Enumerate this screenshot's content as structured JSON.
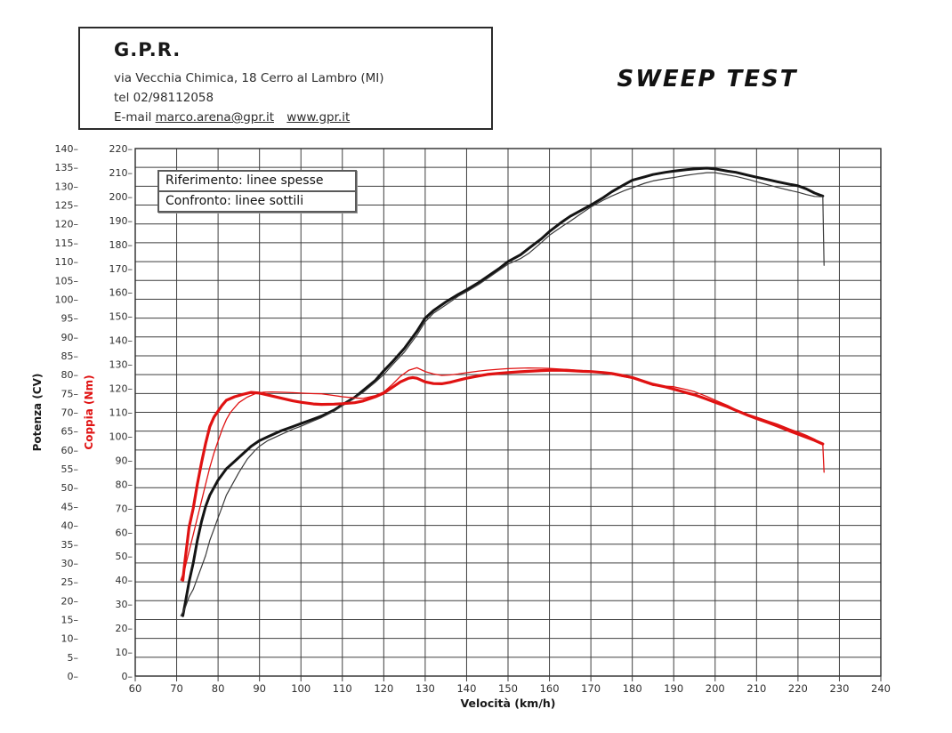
{
  "header": {
    "company": "G.P.R.",
    "address": "via Vecchia Chimica, 18 Cerro al Lambro (MI)",
    "phone": "tel 02/98112058",
    "email_label": "E-mail",
    "email": "marco.arena@gpr.it",
    "website": "www.gpr.it"
  },
  "title": "SWEEP TEST",
  "legend": {
    "reference": "Riferimento: linee spesse",
    "comparison": "Confronto: linee sottili"
  },
  "chart_data": {
    "type": "line",
    "grid": true,
    "x_axis": {
      "label": "Velocità (km/h)",
      "min": 60,
      "max": 240,
      "tick_step": 10
    },
    "y_axis_power": {
      "label": "Potenza (CV)",
      "min": 0,
      "max": 140,
      "tick_step": 5,
      "color": "#1a1a1a"
    },
    "y_axis_torque": {
      "label": "Coppia (Nm)",
      "min": 0,
      "max": 220,
      "tick_step": 10,
      "color": "#e01212"
    },
    "series": [
      {
        "name": "Riferimento Potenza (CV)",
        "axis": "power",
        "color": "#141414",
        "width": 3,
        "points": [
          [
            71.5,
            16
          ],
          [
            72,
            19
          ],
          [
            73,
            25
          ],
          [
            74,
            30
          ],
          [
            75,
            36
          ],
          [
            76,
            41
          ],
          [
            77,
            45
          ],
          [
            78,
            48
          ],
          [
            80,
            52
          ],
          [
            82,
            55
          ],
          [
            84,
            57
          ],
          [
            86,
            59
          ],
          [
            88,
            61
          ],
          [
            90,
            62.5
          ],
          [
            92,
            63.5
          ],
          [
            95,
            65
          ],
          [
            98,
            66.2
          ],
          [
            100,
            67
          ],
          [
            103,
            68.2
          ],
          [
            105,
            69
          ],
          [
            108,
            70.6
          ],
          [
            110,
            72
          ],
          [
            113,
            74
          ],
          [
            115,
            75.8
          ],
          [
            118,
            78.5
          ],
          [
            120,
            81
          ],
          [
            122,
            83.3
          ],
          [
            125,
            87
          ],
          [
            128,
            91.5
          ],
          [
            130,
            95
          ],
          [
            132,
            97
          ],
          [
            135,
            99.3
          ],
          [
            138,
            101.3
          ],
          [
            140,
            102.5
          ],
          [
            143,
            104.5
          ],
          [
            145,
            106
          ],
          [
            148,
            108.3
          ],
          [
            150,
            110
          ],
          [
            153,
            111.8
          ],
          [
            155,
            113.5
          ],
          [
            158,
            116
          ],
          [
            160,
            118
          ],
          [
            163,
            120.5
          ],
          [
            165,
            122
          ],
          [
            168,
            123.8
          ],
          [
            170,
            125
          ],
          [
            173,
            127
          ],
          [
            175,
            128.5
          ],
          [
            178,
            130.4
          ],
          [
            180,
            131.6
          ],
          [
            183,
            132.5
          ],
          [
            185,
            133.1
          ],
          [
            188,
            133.7
          ],
          [
            190,
            134
          ],
          [
            193,
            134.4
          ],
          [
            195,
            134.6
          ],
          [
            198,
            134.8
          ],
          [
            200,
            134.6
          ],
          [
            203,
            134
          ],
          [
            205,
            133.7
          ],
          [
            208,
            132.9
          ],
          [
            210,
            132.4
          ],
          [
            213,
            131.7
          ],
          [
            215,
            131.2
          ],
          [
            218,
            130.5
          ],
          [
            220,
            130.1
          ],
          [
            222,
            129.3
          ],
          [
            224,
            128.2
          ],
          [
            226,
            127.4
          ]
        ]
      },
      {
        "name": "Confronto Potenza (CV)",
        "axis": "power",
        "color": "#3a3a3a",
        "width": 1.2,
        "points": [
          [
            71,
            16
          ],
          [
            72,
            18
          ],
          [
            73,
            21
          ],
          [
            74,
            23
          ],
          [
            75,
            26
          ],
          [
            76,
            29
          ],
          [
            77,
            32
          ],
          [
            78,
            36
          ],
          [
            79,
            39
          ],
          [
            80,
            42
          ],
          [
            81,
            45
          ],
          [
            82,
            48
          ],
          [
            83,
            50
          ],
          [
            85,
            54
          ],
          [
            87,
            57.5
          ],
          [
            89,
            60
          ],
          [
            90,
            61
          ],
          [
            92,
            62.5
          ],
          [
            95,
            64
          ],
          [
            98,
            65.5
          ],
          [
            100,
            66.3
          ],
          [
            103,
            67.7
          ],
          [
            105,
            68.6
          ],
          [
            108,
            70.3
          ],
          [
            110,
            71.8
          ],
          [
            113,
            73.8
          ],
          [
            115,
            75.3
          ],
          [
            118,
            78
          ],
          [
            120,
            80
          ],
          [
            122,
            82.5
          ],
          [
            125,
            86
          ],
          [
            128,
            90.5
          ],
          [
            130,
            94
          ],
          [
            132,
            96.3
          ],
          [
            135,
            98.5
          ],
          [
            138,
            100.8
          ],
          [
            140,
            102
          ],
          [
            143,
            104
          ],
          [
            145,
            105.5
          ],
          [
            148,
            107.8
          ],
          [
            150,
            109.3
          ],
          [
            153,
            110.8
          ],
          [
            155,
            112.2
          ],
          [
            158,
            115
          ],
          [
            160,
            117
          ],
          [
            163,
            119.3
          ],
          [
            165,
            120.7
          ],
          [
            168,
            123
          ],
          [
            170,
            124.5
          ],
          [
            173,
            126.3
          ],
          [
            175,
            127.4
          ],
          [
            178,
            128.8
          ],
          [
            180,
            129.6
          ],
          [
            183,
            130.8
          ],
          [
            185,
            131.4
          ],
          [
            188,
            132
          ],
          [
            190,
            132.3
          ],
          [
            193,
            132.9
          ],
          [
            195,
            133.2
          ],
          [
            198,
            133.6
          ],
          [
            200,
            133.6
          ],
          [
            203,
            133
          ],
          [
            205,
            132.6
          ],
          [
            208,
            131.8
          ],
          [
            210,
            131.2
          ],
          [
            213,
            130.3
          ],
          [
            215,
            129.7
          ],
          [
            218,
            128.9
          ],
          [
            220,
            128.4
          ],
          [
            222,
            127.8
          ],
          [
            224,
            127.3
          ],
          [
            226,
            127.2
          ],
          [
            226.3,
            109
          ]
        ]
      },
      {
        "name": "Riferimento Coppia (Nm)",
        "axis": "torque",
        "color": "#e01212",
        "width": 3.2,
        "points": [
          [
            71.5,
            40
          ],
          [
            72,
            48
          ],
          [
            72.5,
            55
          ],
          [
            73,
            62
          ],
          [
            74,
            70
          ],
          [
            75,
            80
          ],
          [
            76,
            89
          ],
          [
            77,
            97
          ],
          [
            78,
            104
          ],
          [
            79,
            108
          ],
          [
            80,
            110.5
          ],
          [
            81,
            113
          ],
          [
            82,
            115
          ],
          [
            84,
            116.5
          ],
          [
            86,
            117.5
          ],
          [
            88,
            118.3
          ],
          [
            90,
            118
          ],
          [
            92,
            117.2
          ],
          [
            95,
            116
          ],
          [
            98,
            114.8
          ],
          [
            100,
            114.2
          ],
          [
            103,
            113.5
          ],
          [
            105,
            113.3
          ],
          [
            108,
            113.4
          ],
          [
            110,
            113.6
          ],
          [
            113,
            114
          ],
          [
            115,
            114.7
          ],
          [
            118,
            116.5
          ],
          [
            120,
            118
          ],
          [
            122,
            120.3
          ],
          [
            124,
            122.7
          ],
          [
            126,
            124.2
          ],
          [
            127,
            124.5
          ],
          [
            128,
            124.2
          ],
          [
            130,
            122.7
          ],
          [
            132,
            122
          ],
          [
            134,
            121.9
          ],
          [
            136,
            122.5
          ],
          [
            138,
            123.4
          ],
          [
            140,
            124.2
          ],
          [
            143,
            125.2
          ],
          [
            145,
            125.8
          ],
          [
            148,
            126.3
          ],
          [
            150,
            126.6
          ],
          [
            153,
            126.9
          ],
          [
            155,
            127.1
          ],
          [
            158,
            127.4
          ],
          [
            160,
            127.5
          ],
          [
            163,
            127.5
          ],
          [
            165,
            127.4
          ],
          [
            168,
            127.1
          ],
          [
            170,
            127
          ],
          [
            173,
            126.6
          ],
          [
            175,
            126.2
          ],
          [
            178,
            125.2
          ],
          [
            180,
            124.5
          ],
          [
            183,
            122.8
          ],
          [
            185,
            121.7
          ],
          [
            188,
            120.6
          ],
          [
            190,
            119.7
          ],
          [
            193,
            118.2
          ],
          [
            195,
            117.3
          ],
          [
            198,
            115.5
          ],
          [
            200,
            114.2
          ],
          [
            203,
            112.3
          ],
          [
            205,
            110.8
          ],
          [
            208,
            108.7
          ],
          [
            210,
            107.4
          ],
          [
            213,
            105.6
          ],
          [
            215,
            104.3
          ],
          [
            218,
            102.2
          ],
          [
            220,
            100.9
          ],
          [
            222,
            99.6
          ],
          [
            224,
            98.3
          ],
          [
            226,
            96.8
          ]
        ]
      },
      {
        "name": "Confronto Coppia (Nm)",
        "axis": "torque",
        "color": "#e01212",
        "width": 1.3,
        "points": [
          [
            71,
            40
          ],
          [
            72,
            45
          ],
          [
            73,
            52
          ],
          [
            74,
            59
          ],
          [
            75,
            66
          ],
          [
            76,
            73
          ],
          [
            77,
            80
          ],
          [
            78,
            87
          ],
          [
            79,
            93
          ],
          [
            80,
            98
          ],
          [
            81,
            103
          ],
          [
            82,
            107
          ],
          [
            83,
            110
          ],
          [
            85,
            114
          ],
          [
            87,
            116.3
          ],
          [
            89,
            117.8
          ],
          [
            91,
            118.4
          ],
          [
            93,
            118.5
          ],
          [
            95,
            118.4
          ],
          [
            98,
            118.2
          ],
          [
            100,
            118
          ],
          [
            103,
            117.8
          ],
          [
            105,
            117.7
          ],
          [
            108,
            117
          ],
          [
            110,
            116.5
          ],
          [
            113,
            116
          ],
          [
            115,
            115.8
          ],
          [
            118,
            117
          ],
          [
            120,
            118.5
          ],
          [
            122,
            121.5
          ],
          [
            124,
            125
          ],
          [
            126,
            127.5
          ],
          [
            128,
            128.6
          ],
          [
            130,
            127
          ],
          [
            132,
            126
          ],
          [
            134,
            125.4
          ],
          [
            136,
            125.6
          ],
          [
            138,
            126
          ],
          [
            140,
            126.5
          ],
          [
            143,
            127.2
          ],
          [
            145,
            127.6
          ],
          [
            148,
            128
          ],
          [
            150,
            128.2
          ],
          [
            153,
            128.4
          ],
          [
            155,
            128.5
          ],
          [
            158,
            128.4
          ],
          [
            160,
            128.3
          ],
          [
            163,
            128
          ],
          [
            165,
            127.8
          ],
          [
            168,
            127.3
          ],
          [
            170,
            127
          ],
          [
            173,
            126.3
          ],
          [
            175,
            125.8
          ],
          [
            178,
            124.8
          ],
          [
            180,
            124.2
          ],
          [
            183,
            122.4
          ],
          [
            185,
            121.2
          ],
          [
            188,
            120.9
          ],
          [
            190,
            120.7
          ],
          [
            193,
            119.5
          ],
          [
            195,
            118.6
          ],
          [
            198,
            116.6
          ],
          [
            200,
            115.1
          ],
          [
            203,
            112.9
          ],
          [
            205,
            111.1
          ],
          [
            208,
            109.1
          ],
          [
            210,
            108
          ],
          [
            213,
            106.2
          ],
          [
            215,
            105.1
          ],
          [
            218,
            103
          ],
          [
            220,
            101.8
          ],
          [
            222,
            100.4
          ],
          [
            224,
            98.8
          ],
          [
            226,
            96.5
          ],
          [
            226.3,
            85
          ]
        ]
      }
    ]
  }
}
